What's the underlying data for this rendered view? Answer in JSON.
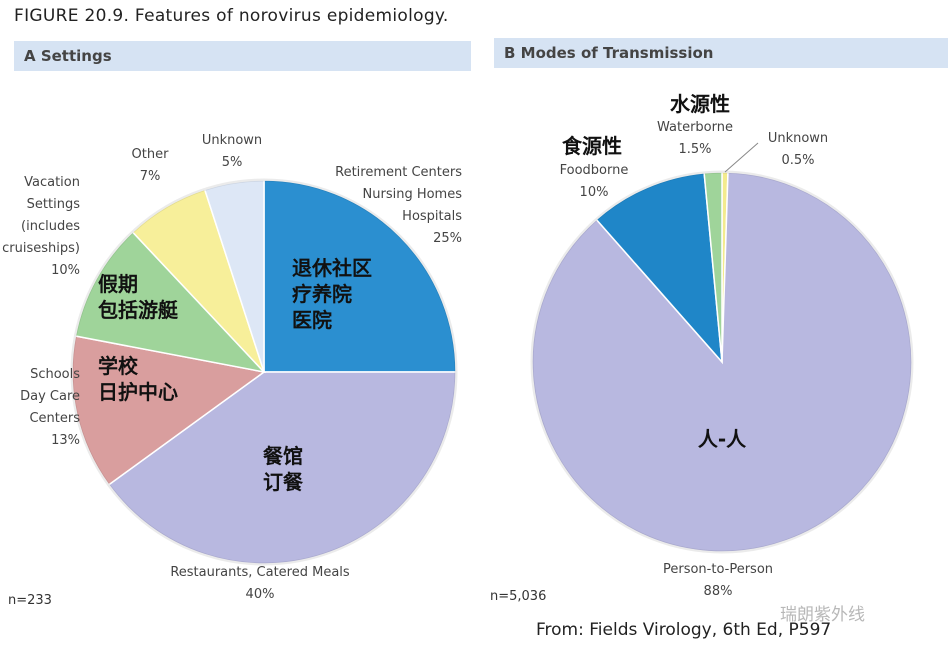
{
  "figure_title": "FIGURE 20.9. Features of norovirus epidemiology.",
  "panels": {
    "a": {
      "header": "A  Settings",
      "n": "n=233"
    },
    "b": {
      "header": "B  Modes of Transmission",
      "n": "n=5,036"
    }
  },
  "source": "From: Fields Virology, 6th Ed, P597",
  "watermark": "瑞朗紫外线",
  "chart_data": [
    {
      "type": "pie",
      "title": "A Settings",
      "slices": [
        {
          "label_lines": [
            "Retirement Centers",
            "Nursing Homes",
            "Hospitals"
          ],
          "pct_text": "25%",
          "value": 25,
          "color": "#2b8fd0",
          "cn_lines": [
            "退休社区",
            "疗养院",
            "医院"
          ]
        },
        {
          "label_lines": [
            "Restaurants, Catered Meals"
          ],
          "pct_text": "40%",
          "value": 40,
          "color": "#b8b8e0",
          "cn_lines": [
            "餐馆",
            "订餐"
          ]
        },
        {
          "label_lines": [
            "Schools",
            "Day Care",
            "Centers"
          ],
          "pct_text": "13%",
          "value": 13,
          "color": "#d99e9e",
          "cn_lines": [
            "学校",
            "日护中心"
          ]
        },
        {
          "label_lines": [
            "Vacation",
            "Settings",
            "(includes",
            "cruiseships)"
          ],
          "pct_text": "10%",
          "value": 10,
          "color": "#9fd49a",
          "cn_lines": [
            "假期",
            "包括游艇"
          ]
        },
        {
          "label_lines": [
            "Other"
          ],
          "pct_text": "7%",
          "value": 7,
          "color": "#f7ef9a",
          "cn_lines": []
        },
        {
          "label_lines": [
            "Unknown"
          ],
          "pct_text": "5%",
          "value": 5,
          "color": "#dde7f6",
          "cn_lines": []
        }
      ]
    },
    {
      "type": "pie",
      "title": "B Modes of Transmission",
      "slices": [
        {
          "label_lines": [
            "Unknown"
          ],
          "pct_text": "0.5%",
          "value": 0.5,
          "color": "#f3eb8e",
          "cn_lines": []
        },
        {
          "label_lines": [
            "Person-to-Person"
          ],
          "pct_text": "88%",
          "value": 88,
          "color": "#b8b8e0",
          "cn_lines": [
            "人-人"
          ]
        },
        {
          "label_lines": [
            "Foodborne"
          ],
          "pct_text": "10%",
          "value": 10,
          "color": "#1f86c8",
          "cn_lines": [
            "食源性"
          ]
        },
        {
          "label_lines": [
            "Waterborne"
          ],
          "pct_text": "1.5%",
          "value": 1.5,
          "color": "#9fd49a",
          "cn_lines": [
            "水源性"
          ]
        }
      ]
    }
  ]
}
